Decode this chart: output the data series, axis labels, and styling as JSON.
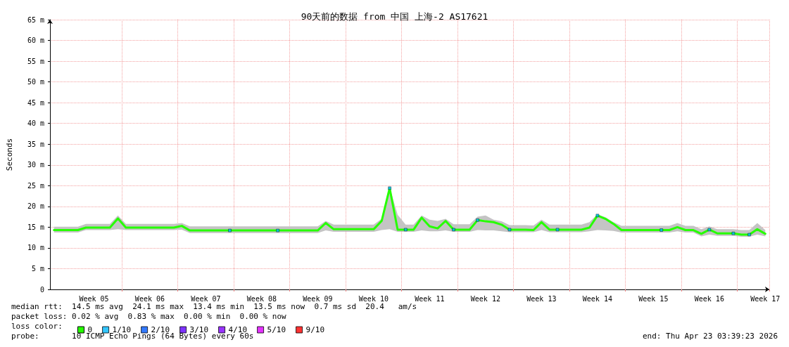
{
  "chart_data": {
    "type": "line",
    "title": "90天前的数据 from 中国 上海-2 AS17621",
    "ylabel": "Seconds",
    "legend_title": "loss color:",
    "annotations": [
      "median rtt:  14.5 ms avg  24.1 ms max  13.4 ms min  13.5 ms now  0.7 ms sd  20.4   am/s",
      "packet loss: 0.02 % avg  0.83 % max  0.00 % min  0.00 % now",
      "probe:       10 ICMP Echo Pings (64 Bytes) every 60s",
      "end: Thu Apr 23 03:39:23 2026"
    ],
    "categories": [
      null,
      null,
      null,
      null,
      null,
      "Week 05",
      null,
      null,
      null,
      null,
      null,
      null,
      "Week 06",
      null,
      null,
      null,
      null,
      null,
      null,
      "Week 07",
      null,
      null,
      null,
      null,
      null,
      null,
      "Week 08",
      null,
      null,
      null,
      null,
      null,
      null,
      "Week 09",
      null,
      null,
      null,
      null,
      null,
      null,
      "Week 10",
      null,
      null,
      null,
      null,
      null,
      null,
      "Week 11",
      null,
      null,
      null,
      null,
      null,
      null,
      "Week 12",
      null,
      null,
      null,
      null,
      null,
      null,
      "Week 13",
      null,
      null,
      null,
      null,
      null,
      null,
      "Week 14",
      null,
      null,
      null,
      null,
      null,
      null,
      "Week 15",
      null,
      null,
      null,
      null,
      null,
      null,
      "Week 16",
      null,
      null,
      null,
      null,
      null,
      null,
      "Week 17"
    ],
    "ylim": [
      0,
      65
    ],
    "yticks": [
      0,
      {
        "value": 5,
        "label": "5 m"
      },
      {
        "value": 10,
        "label": "10 m"
      },
      {
        "value": 15,
        "label": "15 m"
      },
      {
        "value": 20,
        "label": "20 m"
      },
      {
        "value": 25,
        "label": "25 m"
      },
      {
        "value": 30,
        "label": "30 m"
      },
      {
        "value": 35,
        "label": "35 m"
      },
      {
        "value": 40,
        "label": "40 m"
      },
      {
        "value": 45,
        "label": "45 m"
      },
      {
        "value": 50,
        "label": "50 m"
      },
      {
        "value": 55,
        "label": "55 m"
      },
      {
        "value": 60,
        "label": "60 m"
      },
      {
        "value": 65,
        "label": "65 m"
      }
    ],
    "grid": true,
    "legend": "bottom left",
    "marker": "none",
    "series": [
      {
        "name": "0",
        "color": "#26ff00",
        "values": [
          14.3,
          14.3,
          14.3,
          14.3,
          14.9,
          14.9,
          14.9,
          14.9,
          17.1,
          14.9,
          14.9,
          14.9,
          14.9,
          14.9,
          14.9,
          14.9,
          15.3,
          14.2,
          14.2,
          14.2,
          14.2,
          14.2,
          14.2,
          14.2,
          14.2,
          14.2,
          14.2,
          14.2,
          14.2,
          14.2,
          14.2,
          14.2,
          14.2,
          14.2,
          16.0,
          14.5,
          14.5,
          14.5,
          14.5,
          14.5,
          14.5,
          16.5,
          24.4,
          14.4,
          14.4,
          14.4,
          17.3,
          15.2,
          14.7,
          16.5,
          14.4,
          14.4,
          14.4,
          16.7,
          16.4,
          16.2,
          15.6,
          14.4,
          14.4,
          14.4,
          14.3,
          16.2,
          14.4,
          14.4,
          14.4,
          14.4,
          14.4,
          14.9,
          17.8,
          17.0,
          15.8,
          14.3,
          14.3,
          14.3,
          14.3,
          14.3,
          14.3,
          14.3,
          15.0,
          14.3,
          14.3,
          13.4,
          14.4,
          13.5,
          13.5,
          13.5,
          13.2,
          13.2,
          14.5,
          13.4
        ],
        "lower": [
          13.7,
          13.7,
          13.7,
          13.7,
          14.3,
          14.3,
          14.3,
          14.3,
          14.5,
          14.3,
          14.3,
          14.3,
          14.3,
          14.3,
          14.3,
          14.3,
          14.4,
          13.6,
          13.6,
          13.6,
          13.6,
          13.6,
          13.6,
          13.6,
          13.6,
          13.6,
          13.6,
          13.6,
          13.6,
          13.6,
          13.6,
          13.6,
          13.6,
          13.6,
          14.2,
          13.9,
          13.9,
          13.9,
          13.9,
          13.9,
          13.9,
          14.3,
          14.5,
          13.9,
          13.9,
          13.9,
          14.2,
          14.0,
          14.0,
          14.2,
          13.9,
          13.9,
          13.9,
          14.3,
          14.2,
          14.2,
          14.0,
          13.8,
          13.8,
          13.8,
          13.8,
          14.3,
          13.8,
          13.8,
          13.8,
          13.8,
          13.8,
          14.0,
          14.3,
          14.2,
          14.1,
          13.7,
          13.7,
          13.7,
          13.7,
          13.7,
          13.7,
          13.7,
          14.0,
          13.7,
          13.7,
          12.8,
          13.2,
          12.9,
          12.9,
          12.9,
          12.7,
          12.7,
          13.2,
          12.8
        ],
        "upper": [
          15.1,
          15.1,
          15.1,
          15.1,
          15.8,
          15.8,
          15.8,
          15.8,
          17.8,
          15.8,
          15.8,
          15.8,
          15.8,
          15.8,
          15.8,
          15.8,
          16.0,
          15.2,
          15.2,
          15.2,
          15.2,
          15.2,
          15.2,
          15.2,
          15.2,
          15.2,
          15.2,
          15.2,
          15.2,
          15.2,
          15.2,
          15.2,
          15.2,
          15.2,
          16.5,
          15.6,
          15.6,
          15.6,
          15.6,
          15.6,
          15.6,
          17.0,
          24.6,
          18.0,
          15.6,
          15.6,
          17.8,
          16.8,
          16.5,
          17.0,
          15.7,
          15.7,
          15.7,
          17.5,
          17.8,
          16.8,
          16.4,
          15.5,
          15.5,
          15.5,
          15.4,
          16.8,
          15.6,
          15.6,
          15.6,
          15.6,
          15.6,
          16.2,
          18.1,
          17.4,
          16.2,
          15.3,
          15.3,
          15.3,
          15.3,
          15.3,
          15.3,
          15.3,
          16.0,
          15.3,
          15.3,
          14.5,
          15.2,
          14.5,
          14.5,
          14.5,
          14.3,
          14.3,
          16.0,
          14.3
        ]
      },
      {
        "name": "1/10",
        "type": "scatter",
        "marker": "square",
        "color": "#00b8ff",
        "values": [
          null,
          null,
          null,
          null,
          null,
          null,
          null,
          null,
          null,
          null,
          null,
          null,
          null,
          null,
          null,
          null,
          null,
          null,
          null,
          null,
          null,
          null,
          14.2,
          null,
          null,
          null,
          null,
          null,
          14.2,
          null,
          null,
          null,
          null,
          null,
          null,
          null,
          null,
          null,
          null,
          null,
          null,
          null,
          24.4,
          null,
          14.4,
          null,
          null,
          null,
          null,
          null,
          14.4,
          null,
          null,
          16.7,
          null,
          null,
          null,
          14.4,
          null,
          null,
          null,
          null,
          null,
          14.4,
          null,
          null,
          null,
          null,
          17.8,
          null,
          null,
          null,
          null,
          null,
          null,
          null,
          14.3,
          null,
          null,
          null,
          null,
          null,
          14.4,
          null,
          null,
          13.5,
          null,
          13.2,
          null,
          null
        ]
      },
      {
        "name": "2/10",
        "type": "scatter",
        "marker": "square",
        "color": "#0059ff",
        "values": [
          null,
          null,
          null,
          null,
          null,
          null,
          null,
          null,
          null,
          null,
          null,
          null,
          null,
          null,
          null,
          null,
          null,
          null,
          null,
          null,
          null,
          null,
          null,
          null,
          null,
          null,
          null,
          null,
          null,
          null,
          null,
          null,
          null,
          null,
          null,
          null,
          null,
          null,
          null,
          null,
          null,
          null,
          null,
          null,
          null,
          null,
          null,
          null,
          null,
          null,
          null,
          null,
          null,
          null,
          null,
          null,
          null,
          null,
          null,
          null,
          null,
          null,
          null,
          null,
          null,
          null,
          null,
          null,
          null,
          null,
          null,
          null,
          null,
          null,
          null,
          null,
          null,
          null,
          null,
          null,
          null,
          null,
          null,
          null,
          null,
          null,
          null,
          null,
          null,
          null
        ]
      },
      {
        "name": "3/10",
        "type": "scatter",
        "marker": "square",
        "color": "#5e00ff",
        "values": [
          null,
          null,
          null,
          null,
          null,
          null,
          null,
          null,
          null,
          null,
          null,
          null,
          null,
          null,
          null,
          null,
          null,
          null,
          null,
          null,
          null,
          null,
          null,
          null,
          null,
          null,
          null,
          null,
          null,
          null,
          null,
          null,
          null,
          null,
          null,
          null,
          null,
          null,
          null,
          null,
          null,
          null,
          null,
          null,
          null,
          null,
          null,
          null,
          null,
          null,
          null,
          null,
          null,
          null,
          null,
          null,
          null,
          null,
          null,
          null,
          null,
          null,
          null,
          null,
          null,
          null,
          null,
          null,
          null,
          null,
          null,
          null,
          null,
          null,
          null,
          null,
          null,
          null,
          null,
          null,
          null,
          null,
          null,
          null,
          null,
          null,
          null,
          null,
          null,
          null
        ]
      },
      {
        "name": "4/10",
        "type": "scatter",
        "marker": "square",
        "color": "#7e00ff",
        "values": [
          null,
          null,
          null,
          null,
          null,
          null,
          null,
          null,
          null,
          null,
          null,
          null,
          null,
          null,
          null,
          null,
          null,
          null,
          null,
          null,
          null,
          null,
          null,
          null,
          null,
          null,
          null,
          null,
          null,
          null,
          null,
          null,
          null,
          null,
          null,
          null,
          null,
          null,
          null,
          null,
          null,
          null,
          null,
          null,
          null,
          null,
          null,
          null,
          null,
          null,
          null,
          null,
          null,
          null,
          null,
          null,
          null,
          null,
          null,
          null,
          null,
          null,
          null,
          null,
          null,
          null,
          null,
          null,
          null,
          null,
          null,
          null,
          null,
          null,
          null,
          null,
          null,
          null,
          null,
          null,
          null,
          null,
          null,
          null,
          null,
          null,
          null,
          null,
          null,
          null
        ]
      },
      {
        "name": "5/10",
        "type": "scatter",
        "marker": "square",
        "color": "#dd00ff",
        "values": [
          null,
          null,
          null,
          null,
          null,
          null,
          null,
          null,
          null,
          null,
          null,
          null,
          null,
          null,
          null,
          null,
          null,
          null,
          null,
          null,
          null,
          null,
          null,
          null,
          null,
          null,
          null,
          null,
          null,
          null,
          null,
          null,
          null,
          null,
          null,
          null,
          null,
          null,
          null,
          null,
          null,
          null,
          null,
          null,
          null,
          null,
          null,
          null,
          null,
          null,
          null,
          null,
          null,
          null,
          null,
          null,
          null,
          null,
          null,
          null,
          null,
          null,
          null,
          null,
          null,
          null,
          null,
          null,
          null,
          null,
          null,
          null,
          null,
          null,
          null,
          null,
          null,
          null,
          null,
          null,
          null,
          null,
          null,
          null,
          null,
          null,
          null,
          null,
          null,
          null
        ]
      },
      {
        "name": "9/10",
        "type": "scatter",
        "marker": "square",
        "color": "#ff0000",
        "values": [
          null,
          null,
          null,
          null,
          null,
          null,
          null,
          null,
          null,
          null,
          null,
          null,
          null,
          null,
          null,
          null,
          null,
          null,
          null,
          null,
          null,
          null,
          null,
          null,
          null,
          null,
          null,
          null,
          null,
          null,
          null,
          null,
          null,
          null,
          null,
          null,
          null,
          null,
          null,
          null,
          null,
          null,
          null,
          null,
          null,
          null,
          null,
          null,
          null,
          null,
          null,
          null,
          null,
          null,
          null,
          null,
          null,
          null,
          null,
          null,
          null,
          null,
          null,
          null,
          null,
          null,
          null,
          null,
          null,
          null,
          null,
          null,
          null,
          null,
          null,
          null,
          null,
          null,
          null,
          null,
          null,
          null,
          null,
          null,
          null,
          null,
          null,
          null,
          null,
          null
        ]
      }
    ]
  }
}
